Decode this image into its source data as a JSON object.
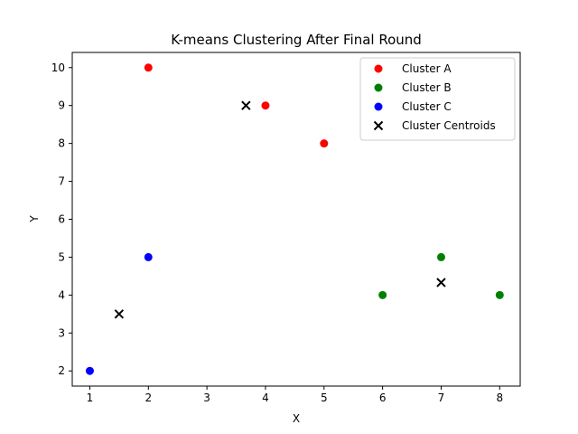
{
  "chart_data": {
    "type": "scatter",
    "title": "K-means Clustering After Final Round",
    "xlabel": "X",
    "ylabel": "Y",
    "xlim": [
      0.7,
      8.35
    ],
    "ylim": [
      1.6,
      10.4
    ],
    "xticks": [
      1,
      2,
      3,
      4,
      5,
      6,
      7,
      8
    ],
    "yticks": [
      2,
      3,
      4,
      5,
      6,
      7,
      8,
      9,
      10
    ],
    "grid": false,
    "legend_position": "top-right",
    "series": [
      {
        "name": "Cluster A",
        "marker": "circle",
        "color": "#ff0000",
        "points": [
          [
            2,
            10
          ],
          [
            4,
            9
          ],
          [
            5,
            8
          ]
        ]
      },
      {
        "name": "Cluster B",
        "marker": "circle",
        "color": "#008000",
        "points": [
          [
            6,
            4
          ],
          [
            7,
            5
          ],
          [
            8,
            4
          ]
        ]
      },
      {
        "name": "Cluster C",
        "marker": "circle",
        "color": "#0000ff",
        "points": [
          [
            1,
            2
          ],
          [
            2,
            5
          ]
        ]
      },
      {
        "name": "Cluster Centroids",
        "marker": "x",
        "color": "#000000",
        "points": [
          [
            3.667,
            9
          ],
          [
            7,
            4.333
          ],
          [
            1.5,
            3.5
          ]
        ]
      }
    ]
  }
}
